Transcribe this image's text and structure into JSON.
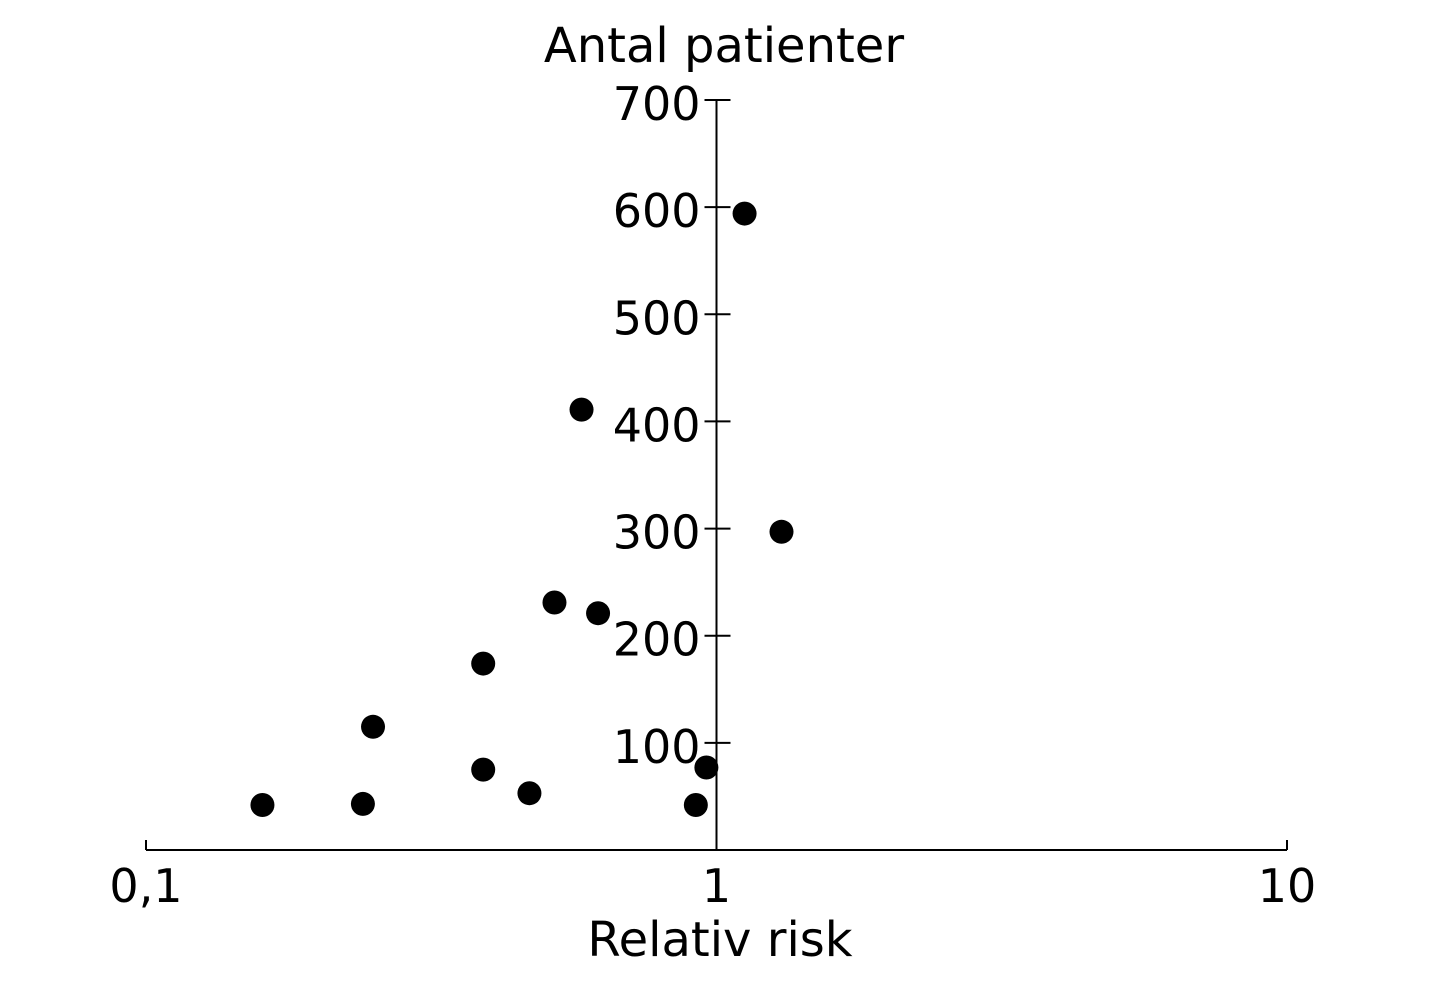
{
  "chart_data": {
    "type": "scatter",
    "title": "Antal patienter",
    "xlabel": "Relativ risk",
    "ylabel": "Antal patienter",
    "x_scale": "log",
    "xlim": [
      0.1,
      10
    ],
    "ylim": [
      0,
      700
    ],
    "x_ticks": [
      0.1,
      1,
      10
    ],
    "x_tick_labels": [
      "0,1",
      "1",
      "10"
    ],
    "y_ticks": [
      100,
      200,
      300,
      400,
      500,
      600,
      700
    ],
    "y_tick_labels": [
      "100",
      "200",
      "300",
      "400",
      "500",
      "600",
      "700"
    ],
    "y_axis_crosses_x_at": 1,
    "grid": false,
    "color": "#000000",
    "points": [
      {
        "x": 1.12,
        "y": 594
      },
      {
        "x": 0.58,
        "y": 411
      },
      {
        "x": 1.3,
        "y": 297
      },
      {
        "x": 0.52,
        "y": 231
      },
      {
        "x": 0.62,
        "y": 221
      },
      {
        "x": 0.39,
        "y": 174
      },
      {
        "x": 0.25,
        "y": 115
      },
      {
        "x": 0.96,
        "y": 77
      },
      {
        "x": 0.39,
        "y": 75
      },
      {
        "x": 0.47,
        "y": 53
      },
      {
        "x": 0.16,
        "y": 42
      },
      {
        "x": 0.24,
        "y": 43
      },
      {
        "x": 0.92,
        "y": 42
      }
    ]
  }
}
